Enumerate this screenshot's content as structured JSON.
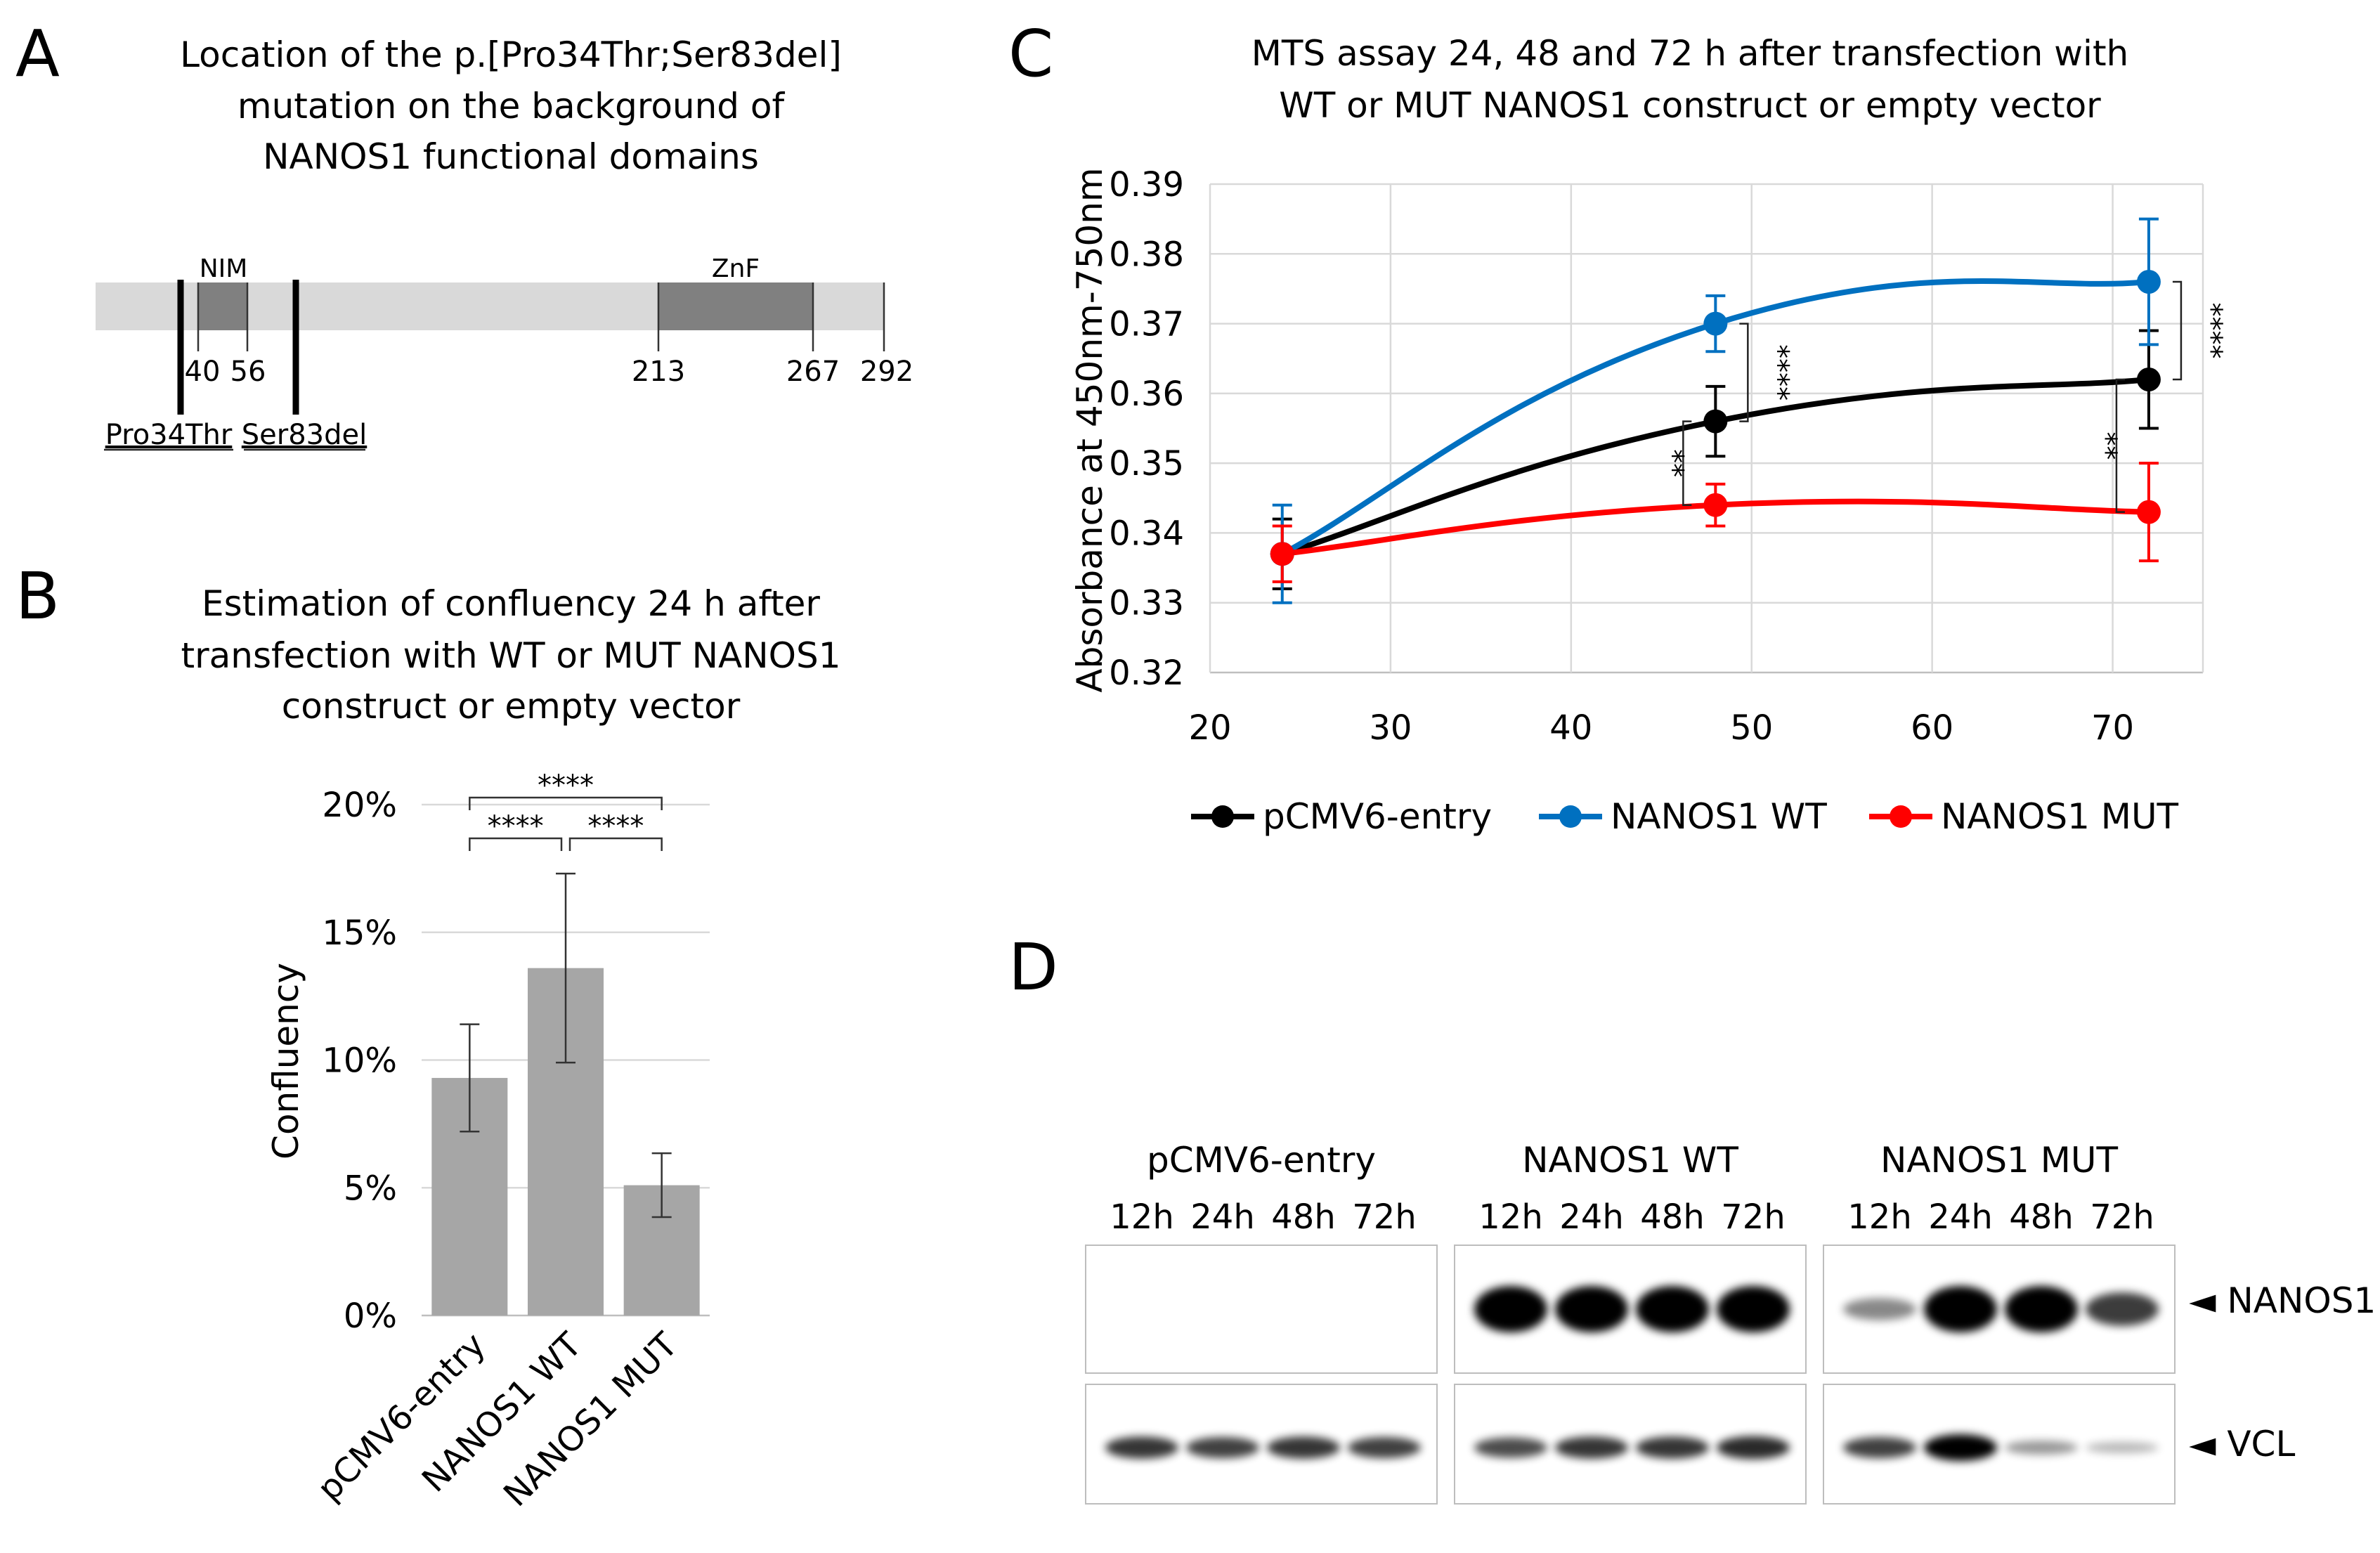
{
  "panel_letters": {
    "a": "A",
    "b": "B",
    "c": "C",
    "d": "D"
  },
  "colors": {
    "black_series": "#000000",
    "wt_series": "#0070c0",
    "mut_series": "#ff0000",
    "bar_fill": "#a6a6a6",
    "domain_bg": "#d9d9d9",
    "domain_dark": "#808080",
    "grid": "#d9d9d9"
  },
  "panel_a": {
    "title_lines": [
      "Location of the p.[Pro34Thr;Ser83del]",
      "mutation on the background of",
      "NANOS1 functional domains"
    ],
    "domains": [
      {
        "label": "NIM",
        "start": 40,
        "end": 56
      },
      {
        "label": "ZnF",
        "start": 213,
        "end": 267
      }
    ],
    "protein_length": 292,
    "positions": [
      "40",
      "56",
      "213",
      "267",
      "292"
    ],
    "mutations": [
      {
        "label": "Pro34Thr",
        "pos": 34
      },
      {
        "label": "Ser83del",
        "pos": 83
      }
    ]
  },
  "panel_b": {
    "title_lines": [
      "Estimation of confluency 24 h after",
      "transfection with WT or MUT NANOS1",
      "construct or empty vector"
    ],
    "ylabel": "Confluency",
    "yticks": [
      "0%",
      "5%",
      "10%",
      "15%",
      "20%"
    ],
    "significance": [
      {
        "from": 0,
        "to": 2,
        "label": "****"
      },
      {
        "from": 0,
        "to": 1,
        "label": "****"
      },
      {
        "from": 1,
        "to": 2,
        "label": "****"
      }
    ]
  },
  "panel_c": {
    "title_lines": [
      "MTS assay 24, 48 and 72 h after transfection with",
      "WT or MUT NANOS1 construct or empty vector"
    ],
    "ylabel": "Absorbance at 450nm-750nm",
    "xticks": [
      "20",
      "30",
      "40",
      "50",
      "60",
      "70"
    ],
    "yticks": [
      "0.32",
      "0.33",
      "0.34",
      "0.35",
      "0.36",
      "0.37",
      "0.38",
      "0.39"
    ],
    "significance": [
      {
        "x": 48,
        "y1": 0.37,
        "y2": 0.356,
        "label": "****"
      },
      {
        "x": 48,
        "y1": 0.356,
        "y2": 0.344,
        "label": "**"
      },
      {
        "x": 72,
        "y1": 0.376,
        "y2": 0.362,
        "label": "****"
      },
      {
        "x": 72,
        "y1": 0.362,
        "y2": 0.343,
        "label": "**"
      }
    ]
  },
  "panel_d": {
    "groups": [
      {
        "label": "pCMV6-entry",
        "times": [
          "12h",
          "24h",
          "48h",
          "72h"
        ],
        "nanos1": [
          0,
          0,
          0,
          0
        ],
        "vcl": [
          0.75,
          0.7,
          0.75,
          0.7
        ]
      },
      {
        "label": "NANOS1 WT",
        "times": [
          "12h",
          "24h",
          "48h",
          "72h"
        ],
        "nanos1": [
          1,
          1,
          1,
          1
        ],
        "vcl": [
          0.65,
          0.75,
          0.75,
          0.8
        ]
      },
      {
        "label": "NANOS1 MUT",
        "times": [
          "12h",
          "24h",
          "48h",
          "72h"
        ],
        "nanos1": [
          0.25,
          1,
          1,
          0.6
        ],
        "vcl": [
          0.7,
          1,
          0.3,
          0.15
        ]
      }
    ],
    "band_labels": [
      "◄ NANOS1",
      "◄ VCL"
    ]
  },
  "chart_data": [
    {
      "type": "bar",
      "title": "Estimation of confluency 24 h after transfection with WT or MUT NANOS1 construct or empty vector",
      "categories": [
        "pCMV6-entry",
        "NANOS1 WT",
        "NANOS1 MUT"
      ],
      "values": [
        9.3,
        13.6,
        5.1
      ],
      "errors": [
        2.1,
        3.7,
        1.25
      ],
      "ylabel": "Confluency",
      "ylim": [
        0,
        20
      ],
      "unit": "%",
      "grid": true
    },
    {
      "type": "line",
      "title": "MTS assay 24, 48 and 72 h after transfection with WT or MUT NANOS1 construct or empty vector",
      "xlabel": "",
      "ylabel": "Absorbance at 450nm-750nm",
      "xlim": [
        20,
        75
      ],
      "ylim": [
        0.32,
        0.39
      ],
      "grid": true,
      "legend": "bottom",
      "series": [
        {
          "name": "pCMV6-entry",
          "color": "#000000",
          "x": [
            24,
            48,
            72
          ],
          "y": [
            0.337,
            0.356,
            0.362
          ],
          "err": [
            0.005,
            0.005,
            0.007
          ]
        },
        {
          "name": "NANOS1 WT",
          "color": "#0070c0",
          "x": [
            24,
            48,
            72
          ],
          "y": [
            0.337,
            0.37,
            0.376
          ],
          "err": [
            0.007,
            0.004,
            0.009
          ]
        },
        {
          "name": "NANOS1 MUT",
          "color": "#ff0000",
          "x": [
            24,
            48,
            72
          ],
          "y": [
            0.337,
            0.344,
            0.343
          ],
          "err": [
            0.004,
            0.003,
            0.007
          ]
        }
      ]
    }
  ]
}
